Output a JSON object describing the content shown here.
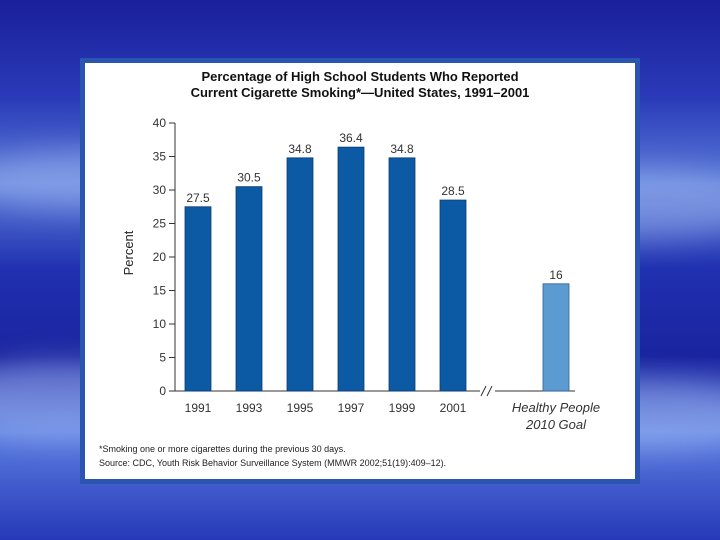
{
  "chart_data": {
    "type": "bar",
    "title": "Percentage of High School Students Who Reported",
    "subtitle": "Current Cigarette Smoking*—United States, 1991–2001",
    "ylabel": "Percent",
    "xlabel": "",
    "ylim": [
      0,
      40
    ],
    "yticks": [
      "0",
      "5",
      "10",
      "15",
      "20",
      "25",
      "30",
      "35",
      "40"
    ],
    "categories": [
      "1991",
      "1993",
      "1995",
      "1997",
      "1999",
      "2001"
    ],
    "values": [
      27.5,
      30.5,
      34.8,
      36.4,
      34.8,
      28.5
    ],
    "value_labels": [
      "27.5",
      "30.5",
      "34.8",
      "36.4",
      "34.8",
      "28.5"
    ],
    "goal": {
      "label_line1": "Healthy People",
      "label_line2": "2010 Goal",
      "value": 16,
      "value_label": "16"
    },
    "bar_color": "#0b5aa3",
    "goal_color": "#5c9bd1",
    "grid": false
  },
  "footnote": "*Smoking one or more cigarettes during the previous 30 days.",
  "source": "Source: CDC, Youth Risk Behavior Surveillance System (MMWR 2002;51(19):409–12)."
}
